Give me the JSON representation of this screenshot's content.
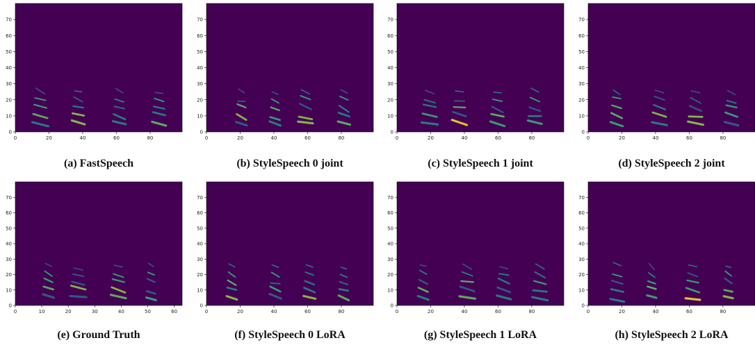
{
  "panels": [
    {
      "caption": "(a) FastSpeech",
      "xlim": [
        0,
        99
      ],
      "ylim": [
        0,
        80
      ],
      "xticks": [
        0,
        20,
        40,
        60,
        80
      ],
      "yticks": [
        0,
        10,
        20,
        30,
        40,
        50,
        60,
        70
      ]
    },
    {
      "caption": "(b) StyleSpeech 0 joint",
      "xlim": [
        0,
        99
      ],
      "ylim": [
        0,
        80
      ],
      "xticks": [
        0,
        20,
        40,
        60,
        80
      ],
      "yticks": [
        0,
        10,
        20,
        30,
        40,
        50,
        60,
        70
      ]
    },
    {
      "caption": "(c) StyleSpeech 1 joint",
      "xlim": [
        0,
        99
      ],
      "ylim": [
        0,
        80
      ],
      "xticks": [
        0,
        20,
        40,
        60,
        80
      ],
      "yticks": [
        0,
        10,
        20,
        30,
        40,
        50,
        60,
        70
      ]
    },
    {
      "caption": "(d) StyleSpeech 2 joint",
      "xlim": [
        0,
        99
      ],
      "ylim": [
        0,
        80
      ],
      "xticks": [
        0,
        20,
        40,
        60,
        80
      ],
      "yticks": [
        0,
        10,
        20,
        30,
        40,
        50,
        60,
        70
      ]
    },
    {
      "caption": "(e) Ground Truth",
      "xlim": [
        0,
        63
      ],
      "ylim": [
        0,
        80
      ],
      "xticks": [
        0,
        10,
        20,
        30,
        40,
        50,
        60
      ],
      "yticks": [
        0,
        10,
        20,
        30,
        40,
        50,
        60,
        70
      ]
    },
    {
      "caption": "(f) StyleSpeech 0 LoRA",
      "xlim": [
        0,
        99
      ],
      "ylim": [
        0,
        80
      ],
      "xticks": [
        0,
        20,
        40,
        60,
        80
      ],
      "yticks": [
        0,
        10,
        20,
        30,
        40,
        50,
        60,
        70
      ]
    },
    {
      "caption": "(g) StyleSpeech 1 LoRA",
      "xlim": [
        0,
        99
      ],
      "ylim": [
        0,
        80
      ],
      "xticks": [
        0,
        20,
        40,
        60,
        80
      ],
      "yticks": [
        0,
        10,
        20,
        30,
        40,
        50,
        60,
        70
      ]
    },
    {
      "caption": "(h) StyleSpeech 2 LoRA",
      "xlim": [
        0,
        99
      ],
      "ylim": [
        0,
        80
      ],
      "xticks": [
        0,
        20,
        40,
        60,
        80
      ],
      "yticks": [
        0,
        10,
        20,
        30,
        40,
        50,
        60,
        70
      ]
    }
  ]
}
